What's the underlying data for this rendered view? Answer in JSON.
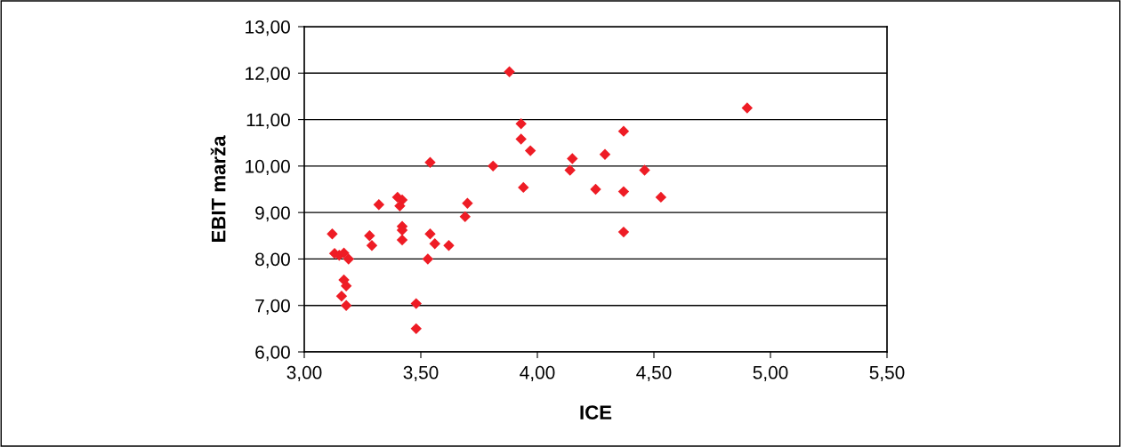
{
  "chart_data": {
    "type": "scatter",
    "xlabel": "ICE",
    "ylabel": "EBIT marža",
    "marker": "diamond",
    "grid": "y",
    "legend": false,
    "xlim": [
      3.0,
      5.5
    ],
    "ylim": [
      6.0,
      13.0
    ],
    "xticks": [
      {
        "value": 3.0,
        "label": "3,00"
      },
      {
        "value": 3.5,
        "label": "3,50"
      },
      {
        "value": 4.0,
        "label": "4,00"
      },
      {
        "value": 4.5,
        "label": "4,50"
      },
      {
        "value": 5.0,
        "label": "5,00"
      },
      {
        "value": 5.5,
        "label": "5,50"
      }
    ],
    "yticks": [
      {
        "value": 6,
        "label": "6,00"
      },
      {
        "value": 7,
        "label": "7,00"
      },
      {
        "value": 8,
        "label": "8,00"
      },
      {
        "value": 9,
        "label": "9,00"
      },
      {
        "value": 10,
        "label": "10,00"
      },
      {
        "value": 11,
        "label": "11,00"
      },
      {
        "value": 12,
        "label": "12,00"
      },
      {
        "value": 13,
        "label": "13,00"
      }
    ],
    "series": [
      {
        "color": "#ee1c25",
        "x": [
          3.12,
          3.13,
          3.15,
          3.17,
          3.19,
          3.17,
          3.18,
          3.16,
          3.18,
          3.28,
          3.29,
          3.32,
          3.4,
          3.42,
          3.41,
          3.42,
          3.42,
          3.42,
          3.48,
          3.48,
          3.53,
          3.54,
          3.54,
          3.56,
          3.62,
          3.69,
          3.7,
          3.81,
          3.88,
          3.93,
          3.93,
          3.94,
          3.97,
          4.14,
          4.15,
          4.25,
          4.29,
          4.37,
          4.37,
          4.37,
          4.46,
          4.53,
          4.9
        ],
        "values": [
          8.54,
          8.12,
          8.08,
          8.13,
          8.0,
          7.55,
          7.42,
          7.2,
          7.0,
          8.5,
          8.29,
          9.17,
          9.33,
          9.27,
          9.14,
          8.7,
          8.62,
          8.41,
          7.04,
          6.5,
          8.0,
          8.54,
          10.08,
          8.33,
          8.29,
          8.91,
          9.2,
          10.0,
          12.03,
          10.91,
          10.58,
          9.54,
          10.33,
          9.91,
          10.16,
          9.5,
          10.25,
          10.75,
          9.45,
          8.58,
          9.91,
          9.33,
          11.25
        ]
      }
    ]
  }
}
